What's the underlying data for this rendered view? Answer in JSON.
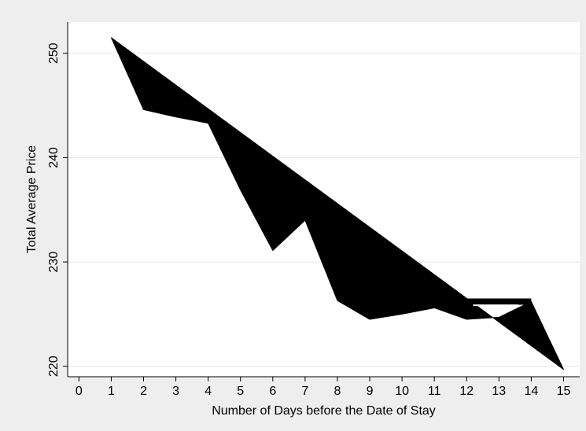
{
  "chart_data": {
    "type": "area",
    "title": "",
    "xlabel": "Number of Days before the Date of Stay",
    "ylabel": "Total Average Price",
    "xlim": [
      -0.35,
      15.5
    ],
    "ylim": [
      219,
      253
    ],
    "xticks": [
      0,
      1,
      2,
      3,
      4,
      5,
      6,
      7,
      8,
      9,
      10,
      11,
      12,
      13,
      14,
      15
    ],
    "yticks": [
      220,
      230,
      240,
      250
    ],
    "grid": "horizontal",
    "legend": "none",
    "fill_color": "#000000",
    "series": [
      {
        "x": [
          1,
          2,
          3,
          4,
          5,
          6,
          7,
          8,
          9,
          10,
          11,
          12,
          13,
          14,
          15
        ],
        "values": [
          251.5,
          244.6,
          243.9,
          243.3,
          236.9,
          231.1,
          234.0,
          226.3,
          224.5,
          225.0,
          225.6,
          224.5,
          224.7,
          226.2,
          219.7
        ]
      },
      {
        "x": [
          1,
          15
        ],
        "values": [
          251.5,
          219.7
        ]
      },
      {
        "x": [
          12,
          14
        ],
        "values": [
          226.2,
          226.2
        ]
      }
    ]
  }
}
